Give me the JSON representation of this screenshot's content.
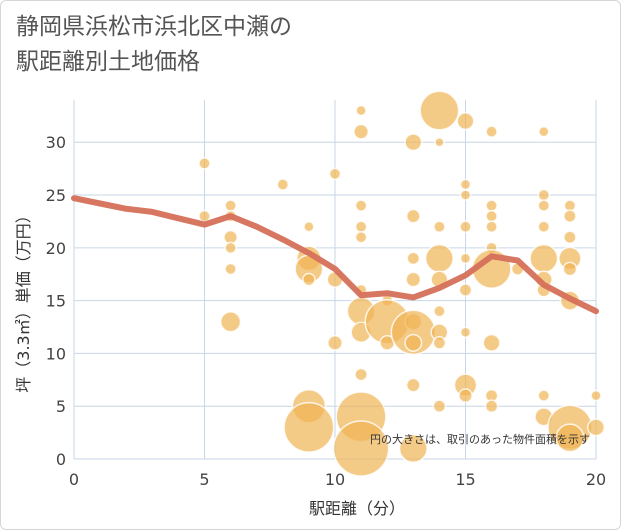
{
  "chart_data": {
    "type": "scatter",
    "title_lines": [
      "静岡県浜松市浜北区中瀬の",
      "駅距離別土地価格"
    ],
    "xlabel": "駅距離（分）",
    "ylabel": "坪（3.3㎡）単価（万円）",
    "note": "円の大きさは、取引のあった物件面積を示す",
    "xlim": [
      0,
      20
    ],
    "ylim": [
      0,
      34
    ],
    "xticks": [
      "0",
      "5",
      "10",
      "15",
      "20"
    ],
    "yticks": [
      "0",
      "5",
      "10",
      "15",
      "20",
      "25",
      "30"
    ],
    "grid": true,
    "colors": {
      "bubble": "#f0b454",
      "line": "#d5705a",
      "grid": "#c9d6e6"
    },
    "trend": [
      {
        "x": 0,
        "y": 24.7
      },
      {
        "x": 1,
        "y": 24.2
      },
      {
        "x": 2,
        "y": 23.7
      },
      {
        "x": 3,
        "y": 23.4
      },
      {
        "x": 4,
        "y": 22.8
      },
      {
        "x": 5,
        "y": 22.2
      },
      {
        "x": 6,
        "y": 23.0
      },
      {
        "x": 7,
        "y": 22.0
      },
      {
        "x": 8,
        "y": 20.8
      },
      {
        "x": 9,
        "y": 19.5
      },
      {
        "x": 10,
        "y": 18.0
      },
      {
        "x": 11,
        "y": 15.5
      },
      {
        "x": 12,
        "y": 15.7
      },
      {
        "x": 13,
        "y": 15.3
      },
      {
        "x": 14,
        "y": 16.2
      },
      {
        "x": 15,
        "y": 17.4
      },
      {
        "x": 16,
        "y": 19.2
      },
      {
        "x": 17,
        "y": 18.8
      },
      {
        "x": 18,
        "y": 16.5
      },
      {
        "x": 19,
        "y": 15.2
      },
      {
        "x": 20,
        "y": 14.0
      }
    ],
    "points": [
      {
        "x": 5,
        "y": 28,
        "s": 1
      },
      {
        "x": 5,
        "y": 23,
        "s": 1
      },
      {
        "x": 6,
        "y": 24,
        "s": 1
      },
      {
        "x": 6,
        "y": 23,
        "s": 1
      },
      {
        "x": 6,
        "y": 21,
        "s": 1.2
      },
      {
        "x": 6,
        "y": 20,
        "s": 1
      },
      {
        "x": 6,
        "y": 18,
        "s": 1
      },
      {
        "x": 6,
        "y": 13,
        "s": 1.8
      },
      {
        "x": 8,
        "y": 26,
        "s": 1
      },
      {
        "x": 9,
        "y": 22,
        "s": 0.9
      },
      {
        "x": 9,
        "y": 19,
        "s": 2.2
      },
      {
        "x": 9,
        "y": 18,
        "s": 2.5
      },
      {
        "x": 9,
        "y": 17,
        "s": 1.1
      },
      {
        "x": 9,
        "y": 5,
        "s": 3
      },
      {
        "x": 9,
        "y": 3,
        "s": 4.5
      },
      {
        "x": 10,
        "y": 27,
        "s": 1
      },
      {
        "x": 10,
        "y": 17,
        "s": 1.4
      },
      {
        "x": 10,
        "y": 11,
        "s": 1.3
      },
      {
        "x": 11,
        "y": 33,
        "s": 0.9
      },
      {
        "x": 11,
        "y": 31,
        "s": 1.3
      },
      {
        "x": 11,
        "y": 24,
        "s": 1
      },
      {
        "x": 11,
        "y": 22,
        "s": 1
      },
      {
        "x": 11,
        "y": 21,
        "s": 1
      },
      {
        "x": 11,
        "y": 16,
        "s": 1
      },
      {
        "x": 11,
        "y": 14,
        "s": 2.5
      },
      {
        "x": 11,
        "y": 12,
        "s": 1.8
      },
      {
        "x": 11,
        "y": 8,
        "s": 1.1
      },
      {
        "x": 11,
        "y": 4,
        "s": 4.5
      },
      {
        "x": 11,
        "y": 1,
        "s": 5
      },
      {
        "x": 12,
        "y": 15,
        "s": 1
      },
      {
        "x": 12,
        "y": 13,
        "s": 4
      },
      {
        "x": 12,
        "y": 11,
        "s": 1.3
      },
      {
        "x": 13,
        "y": 30,
        "s": 1.5
      },
      {
        "x": 13,
        "y": 23,
        "s": 1.2
      },
      {
        "x": 13,
        "y": 19,
        "s": 1.1
      },
      {
        "x": 13,
        "y": 17,
        "s": 1.3
      },
      {
        "x": 13,
        "y": 13,
        "s": 1.5
      },
      {
        "x": 13,
        "y": 12,
        "s": 4
      },
      {
        "x": 13,
        "y": 11,
        "s": 1.5
      },
      {
        "x": 13,
        "y": 7,
        "s": 1.2
      },
      {
        "x": 13,
        "y": 1,
        "s": 2.5
      },
      {
        "x": 14,
        "y": 33,
        "s": 3.5
      },
      {
        "x": 14,
        "y": 30,
        "s": 0.8
      },
      {
        "x": 14,
        "y": 22,
        "s": 1
      },
      {
        "x": 14,
        "y": 19,
        "s": 2.5
      },
      {
        "x": 14,
        "y": 17,
        "s": 1.5
      },
      {
        "x": 14,
        "y": 14,
        "s": 1
      },
      {
        "x": 14,
        "y": 12,
        "s": 1.5
      },
      {
        "x": 14,
        "y": 11,
        "s": 1.1
      },
      {
        "x": 14,
        "y": 5,
        "s": 1.1
      },
      {
        "x": 15,
        "y": 32,
        "s": 1.5
      },
      {
        "x": 15,
        "y": 26,
        "s": 0.9
      },
      {
        "x": 15,
        "y": 25,
        "s": 0.9
      },
      {
        "x": 15,
        "y": 22,
        "s": 1
      },
      {
        "x": 15,
        "y": 19,
        "s": 0.9
      },
      {
        "x": 15,
        "y": 16,
        "s": 1.1
      },
      {
        "x": 15,
        "y": 12,
        "s": 0.9
      },
      {
        "x": 15,
        "y": 7,
        "s": 2
      },
      {
        "x": 15,
        "y": 6,
        "s": 1.2
      },
      {
        "x": 16,
        "y": 31,
        "s": 1
      },
      {
        "x": 16,
        "y": 24,
        "s": 1
      },
      {
        "x": 16,
        "y": 23,
        "s": 1
      },
      {
        "x": 16,
        "y": 22,
        "s": 1
      },
      {
        "x": 16,
        "y": 20,
        "s": 1
      },
      {
        "x": 16,
        "y": 18,
        "s": 3.5
      },
      {
        "x": 16,
        "y": 11,
        "s": 1.5
      },
      {
        "x": 16,
        "y": 6,
        "s": 1.1
      },
      {
        "x": 16,
        "y": 5,
        "s": 1.1
      },
      {
        "x": 17,
        "y": 18,
        "s": 1.1
      },
      {
        "x": 18,
        "y": 31,
        "s": 0.9
      },
      {
        "x": 18,
        "y": 25,
        "s": 1
      },
      {
        "x": 18,
        "y": 24,
        "s": 1
      },
      {
        "x": 18,
        "y": 22,
        "s": 1
      },
      {
        "x": 18,
        "y": 19,
        "s": 2.5
      },
      {
        "x": 18,
        "y": 17,
        "s": 1.5
      },
      {
        "x": 18,
        "y": 16,
        "s": 1.2
      },
      {
        "x": 18,
        "y": 6,
        "s": 1
      },
      {
        "x": 18,
        "y": 4,
        "s": 1.6
      },
      {
        "x": 19,
        "y": 24,
        "s": 1
      },
      {
        "x": 19,
        "y": 23,
        "s": 1.1
      },
      {
        "x": 19,
        "y": 21,
        "s": 1.1
      },
      {
        "x": 19,
        "y": 19,
        "s": 2
      },
      {
        "x": 19,
        "y": 18,
        "s": 1.2
      },
      {
        "x": 19,
        "y": 15,
        "s": 1.7
      },
      {
        "x": 19,
        "y": 3,
        "s": 4
      },
      {
        "x": 19,
        "y": 2,
        "s": 2.5
      },
      {
        "x": 20,
        "y": 6,
        "s": 0.9
      },
      {
        "x": 20,
        "y": 3,
        "s": 1.5
      }
    ]
  }
}
